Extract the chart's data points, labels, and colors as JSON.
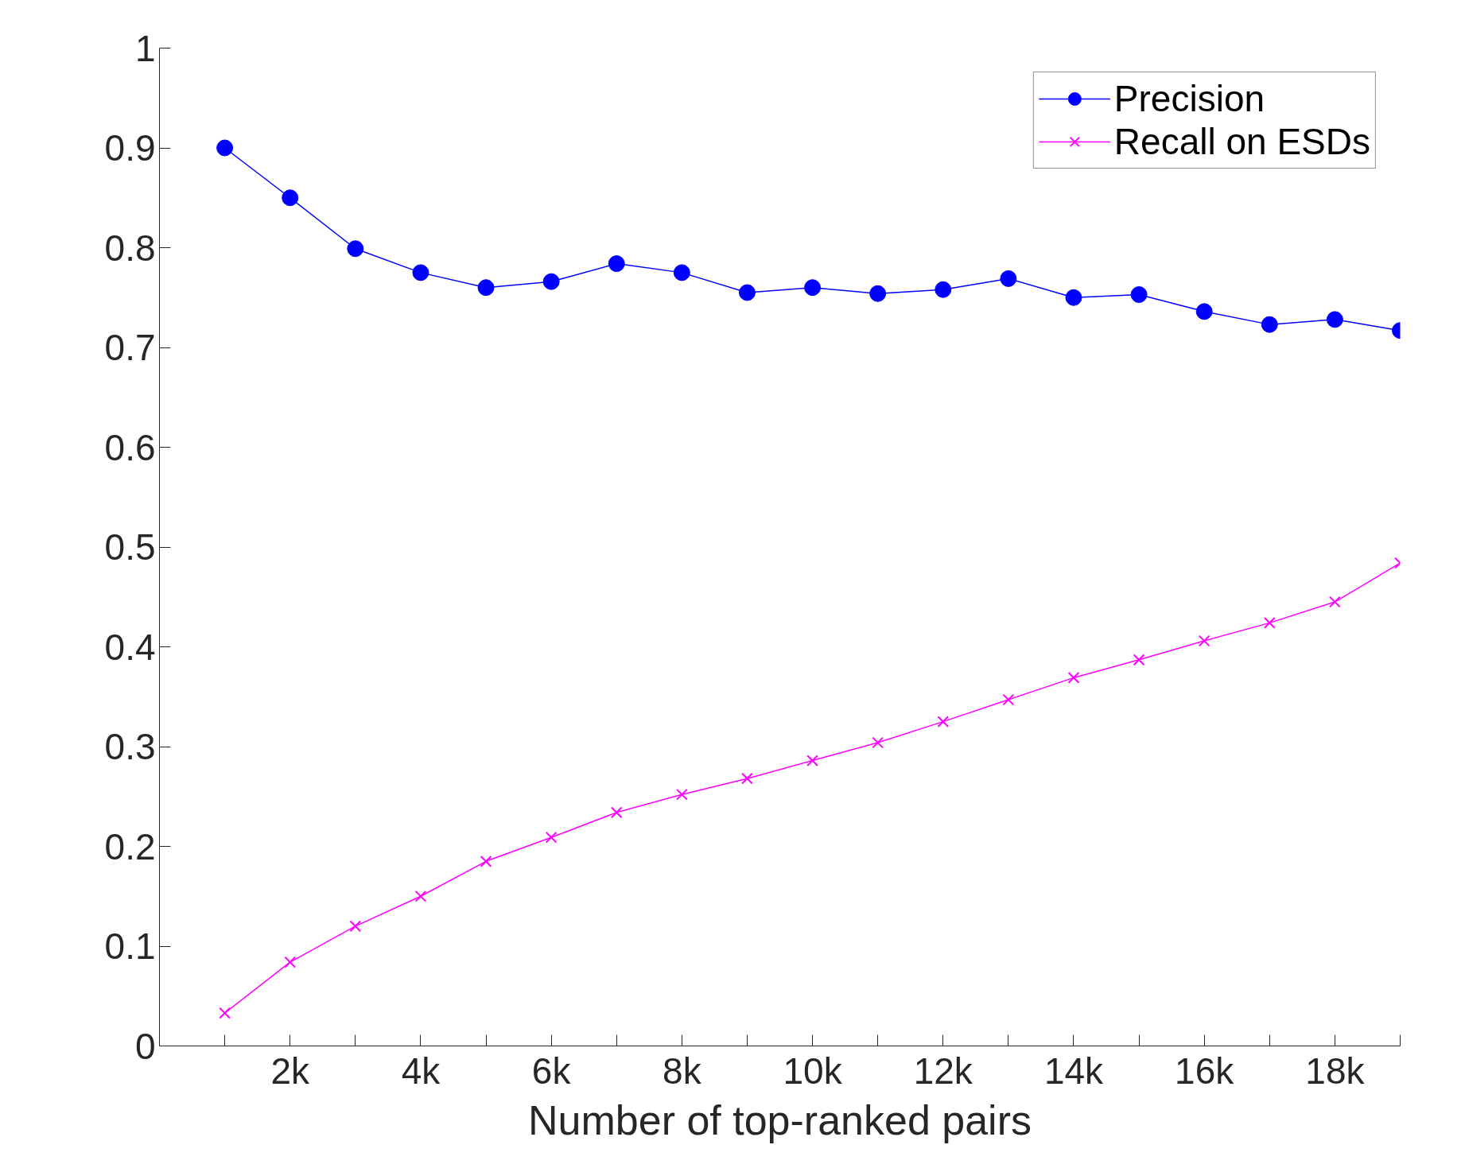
{
  "chart_data": {
    "type": "line",
    "xlabel": "Number of top-ranked pairs",
    "x": [
      1000,
      2000,
      3000,
      4000,
      5000,
      6000,
      7000,
      8000,
      9000,
      10000,
      11000,
      12000,
      13000,
      14000,
      15000,
      16000,
      17000,
      18000,
      19000
    ],
    "series": [
      {
        "name": "Precision",
        "color": "#0000ff",
        "marker": "circle",
        "values": [
          0.9,
          0.85,
          0.799,
          0.775,
          0.76,
          0.766,
          0.784,
          0.775,
          0.755,
          0.76,
          0.754,
          0.758,
          0.769,
          0.75,
          0.753,
          0.736,
          0.723,
          0.728,
          0.717
        ]
      },
      {
        "name": "Recall on ESDs",
        "color": "#ff00ff",
        "marker": "cross",
        "values": [
          0.033,
          0.084,
          0.12,
          0.15,
          0.185,
          0.209,
          0.234,
          0.252,
          0.268,
          0.286,
          0.304,
          0.325,
          0.347,
          0.369,
          0.387,
          0.406,
          0.424,
          0.445,
          0.484
        ]
      }
    ],
    "xlim": [
      0,
      19000
    ],
    "ylim": [
      0,
      1
    ],
    "xticks": [
      {
        "value": 1000,
        "label": null
      },
      {
        "value": 2000,
        "label": "2k"
      },
      {
        "value": 3000,
        "label": null
      },
      {
        "value": 4000,
        "label": "4k"
      },
      {
        "value": 5000,
        "label": null
      },
      {
        "value": 6000,
        "label": "6k"
      },
      {
        "value": 7000,
        "label": null
      },
      {
        "value": 8000,
        "label": "8k"
      },
      {
        "value": 9000,
        "label": null
      },
      {
        "value": 10000,
        "label": "10k"
      },
      {
        "value": 11000,
        "label": null
      },
      {
        "value": 12000,
        "label": "12k"
      },
      {
        "value": 13000,
        "label": null
      },
      {
        "value": 14000,
        "label": "14k"
      },
      {
        "value": 15000,
        "label": null
      },
      {
        "value": 16000,
        "label": "16k"
      },
      {
        "value": 17000,
        "label": null
      },
      {
        "value": 18000,
        "label": "18k"
      },
      {
        "value": 19000,
        "label": null
      }
    ],
    "yticks": [
      0,
      0.1,
      0.2,
      0.3,
      0.4,
      0.5,
      0.6,
      0.7,
      0.8,
      0.9,
      1
    ],
    "grid": false,
    "legend": "top right",
    "line_style": "solid"
  }
}
